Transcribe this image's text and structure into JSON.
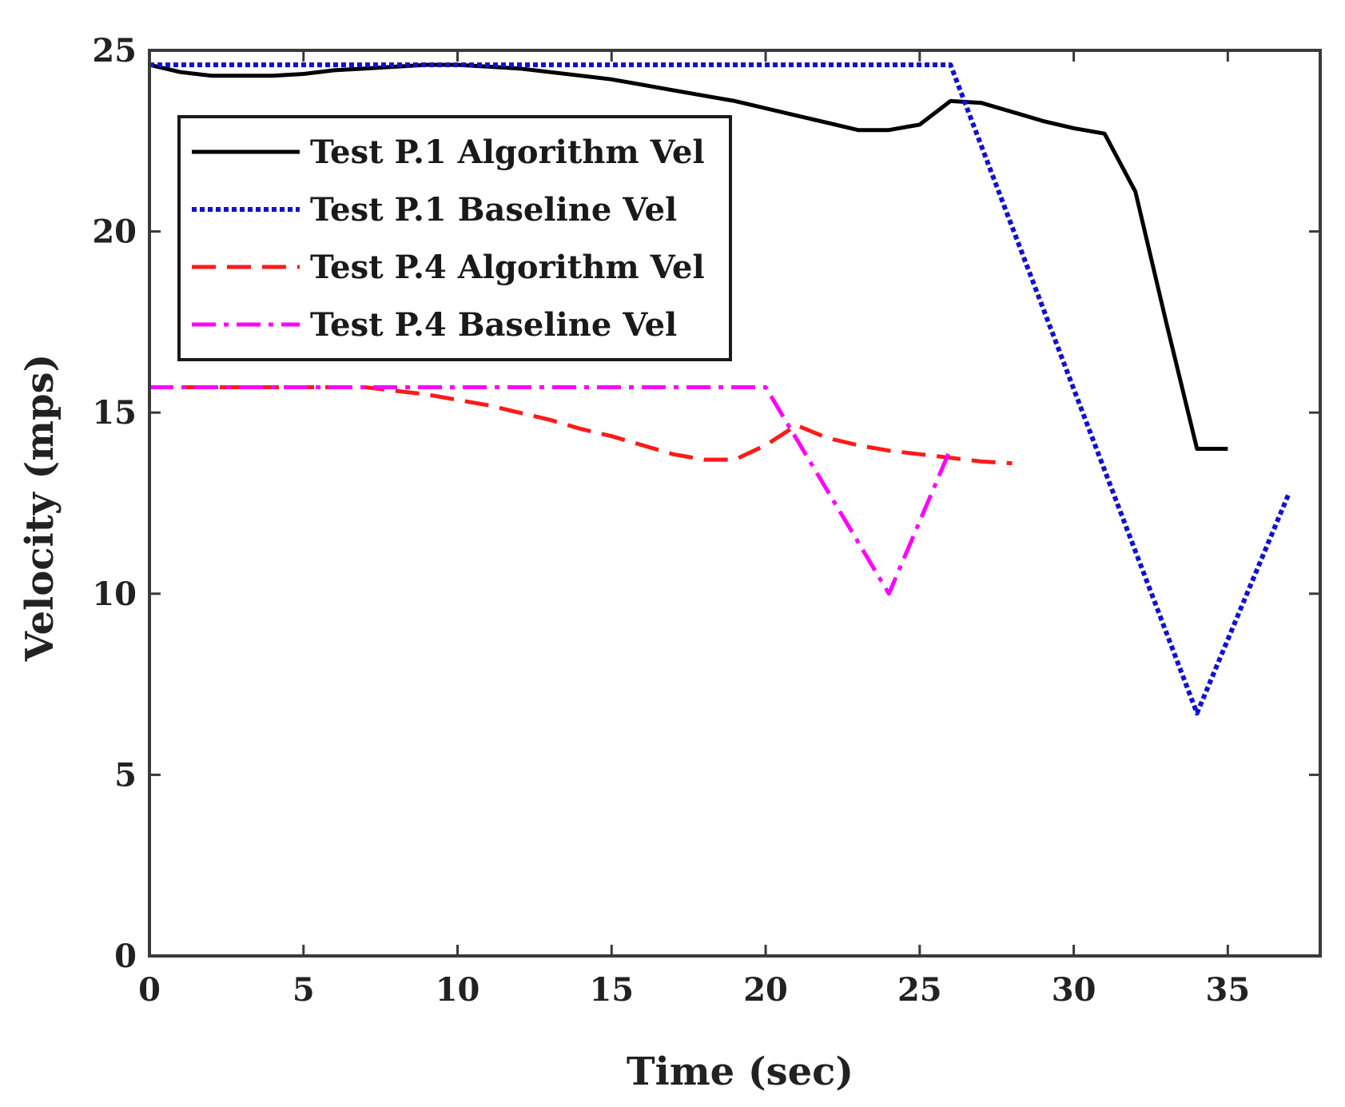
{
  "chart_data": {
    "type": "line",
    "title": "",
    "xlabel": "Time (sec)",
    "ylabel": "Velocity (mps)",
    "xlim": [
      0,
      38
    ],
    "ylim": [
      0,
      25
    ],
    "xticks": [
      0,
      5,
      10,
      15,
      20,
      25,
      30,
      35
    ],
    "yticks": [
      0,
      5,
      10,
      15,
      20,
      25
    ],
    "grid": false,
    "legend_position": "top-left",
    "series": [
      {
        "name": "Test P.1 Algorithm Vel",
        "color": "#000000",
        "style": "solid",
        "x": [
          0,
          1,
          2,
          3,
          4,
          5,
          6,
          7,
          8,
          9,
          10,
          11,
          12,
          13,
          14,
          15,
          16,
          17,
          18,
          19,
          20,
          21,
          22,
          23,
          24,
          25,
          26,
          27,
          28,
          29,
          30,
          31,
          32,
          33,
          34,
          35
        ],
        "y": [
          24.6,
          24.4,
          24.3,
          24.3,
          24.3,
          24.35,
          24.45,
          24.5,
          24.55,
          24.6,
          24.6,
          24.55,
          24.5,
          24.4,
          24.3,
          24.2,
          24.05,
          23.9,
          23.75,
          23.6,
          23.4,
          23.2,
          23.0,
          22.8,
          22.8,
          22.95,
          23.6,
          23.55,
          23.3,
          23.05,
          22.85,
          22.7,
          21.1,
          17.5,
          14.0,
          14.0
        ]
      },
      {
        "name": "Test P.1 Baseline Vel",
        "color": "#1010d0",
        "style": "dotted",
        "x": [
          0,
          26,
          34,
          37
        ],
        "y": [
          24.6,
          24.6,
          6.7,
          12.8
        ]
      },
      {
        "name": "Test P.4 Algorithm Vel",
        "color": "#ff1a1a",
        "style": "dashed",
        "x": [
          0,
          7,
          8,
          9,
          10,
          11,
          12,
          13,
          14,
          15,
          16,
          17,
          18,
          19,
          20,
          21,
          22,
          23,
          24,
          25,
          26,
          27,
          28
        ],
        "y": [
          15.7,
          15.7,
          15.6,
          15.5,
          15.35,
          15.2,
          15.0,
          14.8,
          14.55,
          14.35,
          14.1,
          13.85,
          13.7,
          13.7,
          14.1,
          14.65,
          14.3,
          14.1,
          13.95,
          13.85,
          13.75,
          13.65,
          13.6
        ]
      },
      {
        "name": "Test P.4 Baseline Vel",
        "color": "#ff00ff",
        "style": "dashdot",
        "x": [
          0,
          20,
          24,
          26
        ],
        "y": [
          15.7,
          15.7,
          10.0,
          14.0
        ]
      }
    ]
  }
}
